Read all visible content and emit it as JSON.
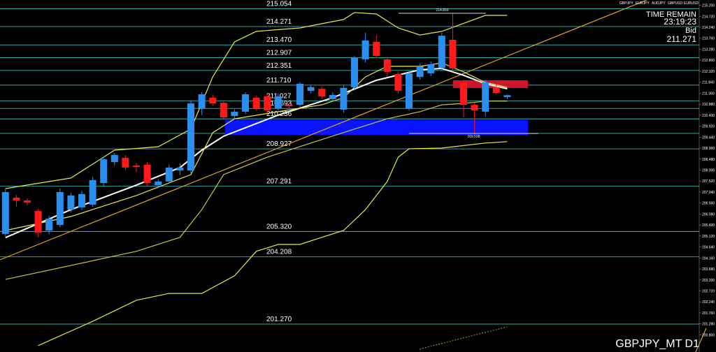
{
  "chart_data": {
    "type": "candlestick",
    "symbol_tabs": [
      "GBPJPY",
      "EURJPY",
      "AUDJPY",
      "GBPUSD",
      "EURUSD"
    ],
    "info": {
      "time_label": "TIME REMAIN",
      "time": "23:19:23",
      "bid_label": "Bid",
      "bid": 211.271
    },
    "footer": "GBPJPY_MT D1",
    "ylim": [
      200.05,
      215.43
    ],
    "xlim": [
      -0.5,
      63.6
    ],
    "up_color": "#2b8ff0",
    "down_color": "#ff1a1a",
    "level_color": "#3fd8d0",
    "candles": {
      "open": [
        205.21,
        206.79,
        206.67,
        206.21,
        205.36,
        205.6,
        206.27,
        206.37,
        206.49,
        207.43,
        208.35,
        208.53,
        208.2,
        208.23,
        207.34,
        207.5,
        207.98,
        207.98,
        210.7,
        211.16,
        210.94,
        210.36,
        210.55,
        211.16,
        211.22,
        210.7,
        210.85,
        210.85,
        211.46,
        211.55,
        211.1,
        210.64,
        211.62,
        212.84,
        213.6,
        212.84,
        212.2,
        210.7,
        212.07,
        212.23,
        212.47,
        213.69,
        211.83,
        210.85,
        210.55,
        211.62,
        211.19
      ],
      "high": [
        207.19,
        206.91,
        206.75,
        206.3,
        206.0,
        207.2,
        207.0,
        207.1,
        207.7,
        208.6,
        208.75,
        208.65,
        208.3,
        208.35,
        207.6,
        208.25,
        208.3,
        211.05,
        211.4,
        211.3,
        211.05,
        210.65,
        211.4,
        211.25,
        211.3,
        211.35,
        210.95,
        211.85,
        211.7,
        211.65,
        211.4,
        211.7,
        213.0,
        214.0,
        213.9,
        212.95,
        212.3,
        212.35,
        212.65,
        212.75,
        214.0,
        214.85,
        211.95,
        210.95,
        211.95,
        211.75,
        211.3
      ],
      "low": [
        205.11,
        206.4,
        206.45,
        205.05,
        205.2,
        205.5,
        206.15,
        206.25,
        206.4,
        207.3,
        208.2,
        208.0,
        207.9,
        207.3,
        207.2,
        207.4,
        207.8,
        207.85,
        210.4,
        210.8,
        210.2,
        210.25,
        210.45,
        210.6,
        210.5,
        210.6,
        210.7,
        210.75,
        211.35,
        211.1,
        211.0,
        210.5,
        211.5,
        212.7,
        212.9,
        212.1,
        211.35,
        210.6,
        211.95,
        212.1,
        212.35,
        212.3,
        210.3,
        209.598,
        210.35,
        211.3,
        211.1
      ],
      "close": [
        207.04,
        206.67,
        206.58,
        205.27,
        205.88,
        207.04,
        206.89,
        206.95,
        207.56,
        208.47,
        208.66,
        208.11,
        208.14,
        207.43,
        207.5,
        208.11,
        208.11,
        210.91,
        211.31,
        210.91,
        210.3,
        210.55,
        211.31,
        210.7,
        210.61,
        211.22,
        210.79,
        211.77,
        211.62,
        211.22,
        211.28,
        211.59,
        212.9,
        213.66,
        212.99,
        212.29,
        211.46,
        212.23,
        212.53,
        212.62,
        213.87,
        212.44,
        210.85,
        210.61,
        211.83,
        211.37,
        211.27
      ]
    },
    "high_label": {
      "value": 214.85,
      "label": "214.850"
    },
    "low_label": {
      "value": 209.598,
      "label": "209.598"
    },
    "indicators": [
      {
        "color": "#ffffff",
        "x": [
          0,
          6,
          12,
          16,
          18,
          20,
          25,
          30,
          34,
          38,
          40,
          42,
          44,
          46
        ],
        "values": [
          205.05,
          206.27,
          207.34,
          208.11,
          208.87,
          209.48,
          210.4,
          211.16,
          211.92,
          212.38,
          212.44,
          212.14,
          211.77,
          211.55
        ]
      },
      {
        "color": "#e8e84a",
        "x": [
          0,
          6,
          10,
          14,
          17,
          19,
          21,
          23,
          27,
          31,
          32,
          34,
          36,
          38,
          40,
          44,
          46
        ],
        "values": [
          207.19,
          207.65,
          208.87,
          209.02,
          209.79,
          212.07,
          213.6,
          214.06,
          214.21,
          214.58,
          214.88,
          214.82,
          214.21,
          213.9,
          214.06,
          214.76,
          214.76
        ]
      },
      {
        "color": "#e8e84a",
        "x": [
          3,
          8,
          12,
          15,
          18,
          21,
          23,
          25,
          27,
          29,
          31,
          33,
          35,
          36,
          37,
          40,
          44,
          46
        ],
        "values": [
          200.33,
          201.39,
          202.31,
          202.61,
          202.61,
          203.38,
          204.45,
          204.75,
          204.75,
          205.06,
          205.36,
          206.27,
          207.5,
          208.56,
          208.93,
          208.96,
          209.18,
          209.24
        ]
      },
      {
        "color": "#e8e84a",
        "x": [
          0,
          6,
          12,
          17,
          19,
          21,
          25,
          29,
          31,
          33,
          35,
          38,
          40,
          42,
          44,
          46
        ],
        "values": [
          205.36,
          205.97,
          206.89,
          207.8,
          209.63,
          210.24,
          210.55,
          210.85,
          211.16,
          212.07,
          212.53,
          212.53,
          212.68,
          212.29,
          211.83,
          211.62
        ]
      },
      {
        "color": "#c8c840",
        "x": [
          0,
          6,
          12,
          16,
          18,
          20,
          24,
          28,
          32,
          35,
          38,
          40,
          42,
          44,
          46
        ],
        "values": [
          203.22,
          203.83,
          204.45,
          205.06,
          206.27,
          207.8,
          208.56,
          209.18,
          209.79,
          210.24,
          210.55,
          210.85,
          210.91,
          211.01,
          211.01
        ]
      }
    ],
    "levels": [
      215.054,
      214.271,
      {
        "value": 213.47,
        "label": "213.470"
      },
      212.907,
      212.351,
      {
        "value": 211.71,
        "label": "211.710"
      },
      211.027,
      210.693,
      210.236,
      209.601,
      208.927,
      207.291,
      {
        "value": 205.32,
        "label": "205.320"
      },
      204.208,
      {
        "value": 201.27,
        "label": "201.270"
      }
    ],
    "yticks": [
      {
        "value": 215.2,
        "label": "215.200"
      },
      {
        "value": 214.72,
        "label": "214.720"
      },
      {
        "value": 214.24,
        "label": "214.240"
      },
      {
        "value": 213.76,
        "label": "213.760"
      },
      {
        "value": 213.28,
        "label": "213.280"
      },
      {
        "value": 212.8,
        "label": "212.800"
      },
      {
        "value": 212.32,
        "label": "212.320"
      },
      {
        "value": 211.84,
        "label": "211.840"
      },
      {
        "value": 211.36,
        "label": "211.360"
      },
      {
        "value": 210.88,
        "label": "210.880"
      },
      {
        "value": 210.4,
        "label": "210.400"
      },
      {
        "value": 209.92,
        "label": "209.920"
      },
      {
        "value": 209.44,
        "label": "209.440"
      },
      {
        "value": 208.96,
        "label": "208.960"
      },
      {
        "value": 208.48,
        "label": "208.480"
      },
      {
        "value": 208,
        "label": "208.000"
      },
      {
        "value": 207.52,
        "label": "207.520"
      },
      {
        "value": 207.04,
        "label": "207.040"
      },
      {
        "value": 206.56,
        "label": "206.560"
      },
      {
        "value": 206.08,
        "label": "206.080"
      },
      {
        "value": 205.6,
        "label": "205.600"
      },
      {
        "value": 205.12,
        "label": "205.120"
      },
      {
        "value": 204.64,
        "label": "204.640"
      },
      {
        "value": 204.16,
        "label": "204.160"
      },
      {
        "value": 203.68,
        "label": "203.680"
      },
      {
        "value": 203.2,
        "label": "203.200"
      },
      {
        "value": 202.72,
        "label": "202.720"
      },
      {
        "value": 202.24,
        "label": "202.240"
      },
      {
        "value": 201.76,
        "label": "201.760"
      },
      {
        "value": 201.28,
        "label": "201.280"
      },
      {
        "value": 200.8,
        "label": "200.800"
      }
    ]
  }
}
